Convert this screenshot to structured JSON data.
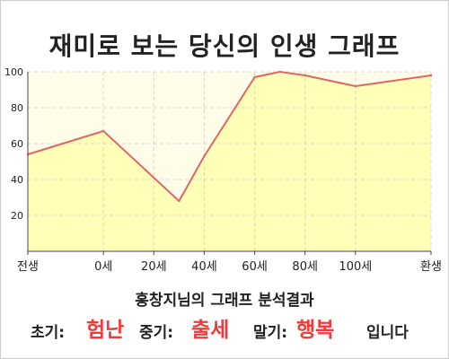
{
  "title": "재미로 보는 당신의 인생 그래프",
  "subtitle": "홍창지님의 그래프 분석결과",
  "summary": {
    "early_label": "초기:",
    "early_value": "험난",
    "mid_label": "중기:",
    "mid_value": "출세",
    "late_label": "말기:",
    "late_value": "행복",
    "ending": "입니다"
  },
  "colors": {
    "line": "#e06666",
    "fill": "#ffffb8",
    "plot_background": "#fffde8",
    "highlight": "#ef3b3b"
  },
  "chart_data": {
    "type": "area",
    "title": "재미로 보는 당신의 인생 그래프",
    "xlabel": "",
    "ylabel": "",
    "x_tick_labels": [
      "전생",
      "0세",
      "20세",
      "40세",
      "60세",
      "80세",
      "100세",
      "환생"
    ],
    "y_ticks": [
      20,
      40,
      60,
      80,
      100
    ],
    "ylim": [
      0,
      100
    ],
    "grid": true,
    "points": [
      {
        "x": "전생",
        "y": 54
      },
      {
        "x": "0세",
        "y": 67
      },
      {
        "x": "30세",
        "y": 28
      },
      {
        "x": "40세",
        "y": 53
      },
      {
        "x": "60세",
        "y": 97
      },
      {
        "x": "70세",
        "y": 100
      },
      {
        "x": "80세",
        "y": 98
      },
      {
        "x": "100세",
        "y": 92
      },
      {
        "x": "환생",
        "y": 98
      }
    ]
  }
}
